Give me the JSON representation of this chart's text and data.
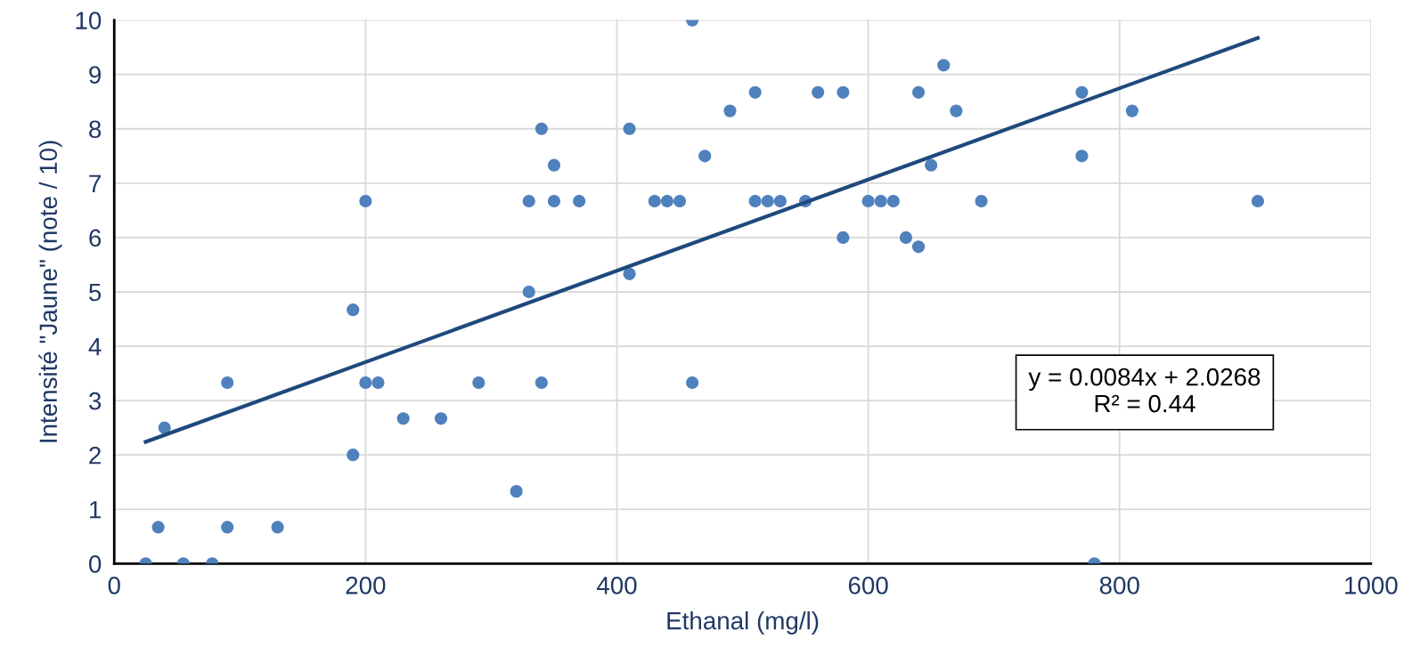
{
  "chart_data": {
    "type": "scatter",
    "xlabel": "Ethanal (mg/l)",
    "ylabel": "Intensité \"Jaune\" (note / 10)",
    "xlim": [
      0,
      1000
    ],
    "xticks": [
      0,
      200,
      400,
      600,
      800,
      1000
    ],
    "ylim": [
      0,
      10
    ],
    "yticks": [
      0,
      1,
      2,
      3,
      4,
      5,
      6,
      7,
      8,
      9,
      10
    ],
    "grid": true,
    "series": [
      {
        "marker": "circle",
        "color": "#4f81bd",
        "x": [
          25,
          35,
          40,
          55,
          78,
          90,
          90,
          130,
          190,
          190,
          200,
          200,
          210,
          230,
          260,
          290,
          320,
          340,
          330,
          330,
          350,
          350,
          340,
          370,
          410,
          410,
          430,
          440,
          450,
          460,
          460,
          470,
          490,
          510,
          510,
          520,
          530,
          550,
          560,
          580,
          580,
          600,
          610,
          620,
          630,
          640,
          640,
          650,
          660,
          670,
          690,
          770,
          770,
          780,
          810,
          910
        ],
        "values": [
          0,
          0.67,
          2.5,
          0,
          0,
          3.33,
          0.67,
          0.67,
          4.67,
          2.0,
          6.67,
          3.33,
          3.33,
          2.67,
          2.67,
          3.33,
          1.33,
          8.0,
          6.67,
          5.0,
          7.33,
          6.67,
          3.33,
          6.67,
          8.0,
          5.33,
          6.67,
          6.67,
          6.67,
          10,
          3.33,
          7.5,
          8.33,
          8.67,
          6.67,
          6.67,
          6.67,
          6.67,
          8.67,
          8.67,
          6.0,
          6.67,
          6.67,
          6.67,
          6.0,
          8.67,
          5.83,
          7.33,
          9.17,
          8.33,
          6.67,
          8.67,
          7.5,
          0,
          8.33,
          6.67
        ]
      },
      {
        "type": "line",
        "color": "#1f497d",
        "x": [
          25,
          910
        ],
        "values": [
          2.24,
          9.67
        ]
      }
    ],
    "annotations": [
      "y = 0.0084x + 2.0268\nR² = 0.44"
    ]
  }
}
